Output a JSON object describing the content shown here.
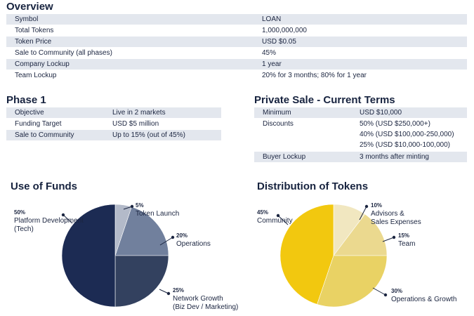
{
  "overview": {
    "title": "Overview",
    "rows": [
      {
        "label": "Symbol",
        "value": "LOAN"
      },
      {
        "label": "Total Tokens",
        "value": "1,000,000,000"
      },
      {
        "label": "Token Price",
        "value": "USD $0.05"
      },
      {
        "label": "Sale to Community (all phases)",
        "value": "45%"
      },
      {
        "label": "Company Lockup",
        "value": "1 year"
      },
      {
        "label": "Team Lockup",
        "value": "20% for 3 months; 80% for 1 year"
      }
    ]
  },
  "phase1": {
    "title": "Phase 1",
    "rows": [
      {
        "label": "Objective",
        "value": "Live in 2 markets"
      },
      {
        "label": "Funding Target",
        "value": "USD $5 million"
      },
      {
        "label": "Sale to Community",
        "value": "Up to 15% (out of 45%)"
      }
    ]
  },
  "private_sale": {
    "title": "Private Sale - Current Terms",
    "minimum_label": "Minimum",
    "minimum_value": "USD $10,000",
    "discounts_label": "Discounts",
    "discounts": [
      "50% (USD $250,000+)",
      "40% (USD $100,000-250,000)",
      "25% (USD $10,000-100,000)"
    ],
    "buyer_lockup_label": "Buyer Lockup",
    "buyer_lockup_value": "3 months after minting"
  },
  "colors": {
    "funds": [
      "#b3bac9",
      "#71809d",
      "#33415f",
      "#1c2b53"
    ],
    "tokens": [
      "#f1e7c0",
      "#ebd98f",
      "#e9d264",
      "#f2c80f"
    ],
    "leader": "#1b2540"
  },
  "chart_data": [
    {
      "type": "pie",
      "title": "Use of Funds",
      "slices": [
        {
          "pct": "5%",
          "label": "Token Launch",
          "value": 5
        },
        {
          "pct": "20%",
          "label": "Operations",
          "value": 20
        },
        {
          "pct": "25%",
          "label": "Network Growth",
          "label2": "(Biz Dev / Marketing)",
          "value": 25
        },
        {
          "pct": "50%",
          "label": "Platform Development",
          "label2": "(Tech)",
          "value": 50
        }
      ]
    },
    {
      "type": "pie",
      "title": "Distribution of Tokens",
      "slices": [
        {
          "pct": "10%",
          "label": "Advisors &",
          "label2": "Sales Expenses",
          "value": 10
        },
        {
          "pct": "15%",
          "label": "Team",
          "value": 15
        },
        {
          "pct": "30%",
          "label": "Operations & Growth",
          "value": 30
        },
        {
          "pct": "45%",
          "label": "Community",
          "value": 45
        }
      ]
    }
  ]
}
